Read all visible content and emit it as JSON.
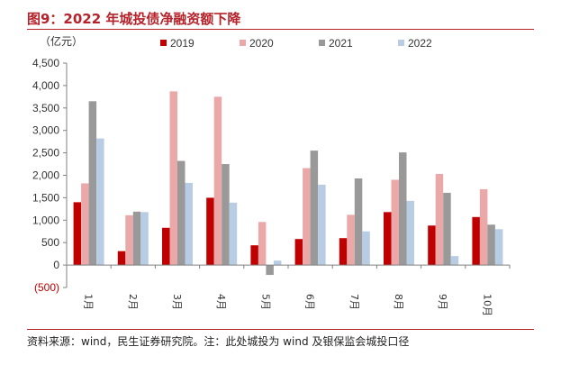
{
  "header": {
    "title": "图9：2022 年城投债净融资额下降"
  },
  "footer": {
    "source": "资料来源：wind，民生证券研究院。注：此处城投为 wind 及银保监会城投口径"
  },
  "chart_data": {
    "type": "bar",
    "title": "图9：2022 年城投债净融资额下降",
    "ylabel": "（亿元）",
    "xlabel": "",
    "ylim": [
      -500,
      4500
    ],
    "yticks": [
      4500,
      4000,
      3500,
      3000,
      2500,
      2000,
      1500,
      1000,
      500,
      0,
      -500
    ],
    "ytick_labels": [
      "4,500",
      "4,000",
      "3,500",
      "3,000",
      "2,500",
      "2,000",
      "1,500",
      "1,000",
      "500",
      "0",
      "(500)"
    ],
    "categories": [
      "1月",
      "2月",
      "3月",
      "4月",
      "5月",
      "6月",
      "7月",
      "8月",
      "9月",
      "10月"
    ],
    "legend_position": "top",
    "series": [
      {
        "name": "2019",
        "color": "#c00000",
        "values": [
          1400,
          310,
          830,
          1500,
          440,
          580,
          600,
          1180,
          880,
          1070
        ]
      },
      {
        "name": "2020",
        "color": "#eaa8a8",
        "values": [
          1820,
          1110,
          3870,
          3750,
          960,
          2160,
          1120,
          1900,
          2030,
          1690
        ]
      },
      {
        "name": "2021",
        "color": "#999999",
        "values": [
          3650,
          1190,
          2320,
          2250,
          -220,
          2550,
          1930,
          2510,
          1610,
          900
        ]
      },
      {
        "name": "2022",
        "color": "#b8cce4",
        "values": [
          2820,
          1180,
          1830,
          1390,
          100,
          1790,
          750,
          1430,
          200,
          800
        ]
      }
    ]
  }
}
